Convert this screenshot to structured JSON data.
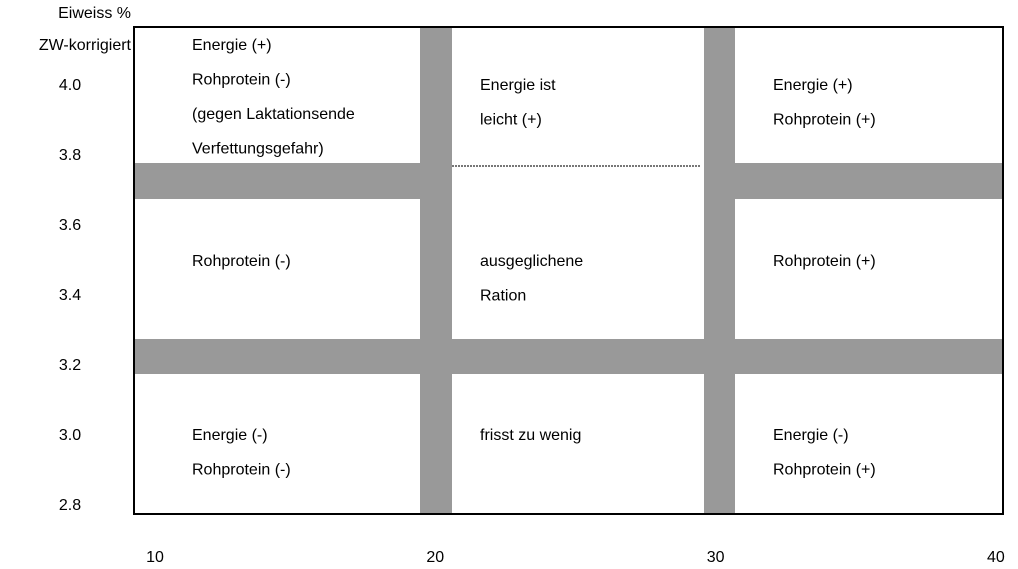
{
  "axis": {
    "y_title": [
      "Eiweiss %",
      "ZW-korrigiert"
    ],
    "y_labels": [
      "4.0",
      "3.8",
      "3.6",
      "3.4",
      "3.2",
      "3.0",
      "2.8"
    ],
    "x_labels": [
      "10",
      "20",
      "30",
      "40"
    ]
  },
  "cells": [
    {
      "lines": [
        "Energie (+)",
        "Rohprotein (-)",
        "(gegen Laktationsende",
        "Verfettungsgefahr)"
      ]
    },
    {
      "lines": [
        "Energie ist",
        "leicht (+)"
      ]
    },
    {
      "lines": [
        "Energie (+)",
        "Rohprotein (+)"
      ]
    },
    {
      "lines": [
        "Rohprotein (-)"
      ]
    },
    {
      "lines": [
        "ausgeglichene",
        "Ration"
      ]
    },
    {
      "lines": [
        "Rohprotein (+)"
      ]
    },
    {
      "lines": [
        "Energie (-)",
        "Rohprotein (-)"
      ]
    },
    {
      "lines": [
        "frisst zu wenig"
      ]
    },
    {
      "lines": [
        "Energie (-)",
        "Rohprotein (+)"
      ]
    }
  ]
}
